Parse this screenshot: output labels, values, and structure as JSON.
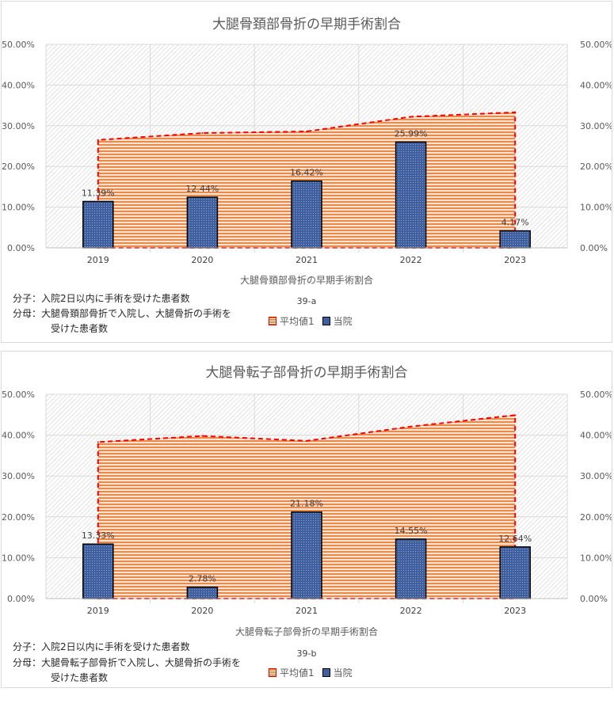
{
  "chart_data": [
    {
      "type": "bar",
      "title": "大腿骨頚部骨折の早期手術割合",
      "xlabel": "大腿骨頚部骨折の早期手術割合",
      "code": "39-a",
      "categories": [
        "2019",
        "2020",
        "2021",
        "2022",
        "2023"
      ],
      "y_ticks": [
        "0.00%",
        "10.00%",
        "20.00%",
        "30.00%",
        "40.00%",
        "50.00%"
      ],
      "ylim": [
        0,
        50
      ],
      "series": [
        {
          "name": "平均値1",
          "kind": "area",
          "values": [
            26.5,
            28.2,
            28.6,
            32.2,
            33.3
          ],
          "color": "#e36c0a",
          "border": "#ff0000"
        },
        {
          "name": "当院",
          "kind": "bar",
          "values": [
            11.39,
            12.44,
            16.42,
            25.99,
            4.17
          ],
          "labels": [
            "11.39%",
            "12.44%",
            "16.42%",
            "25.99%",
            "4.17%"
          ],
          "color": "#3f5f9f"
        }
      ],
      "notes": [
        "分子：入院2日以内に手術を受けた患者数",
        "分母：大腿骨頚部骨折で入院し、大腿骨折の手術を",
        "受けた患者数"
      ],
      "legend": [
        "平均値1",
        "当院"
      ]
    },
    {
      "type": "bar",
      "title": "大腿骨転子部骨折の早期手術割合",
      "xlabel": "大腿骨転子部骨折の早期手術割合",
      "code": "39-b",
      "categories": [
        "2019",
        "2020",
        "2021",
        "2022",
        "2023"
      ],
      "y_ticks": [
        "0.00%",
        "10.00%",
        "20.00%",
        "30.00%",
        "40.00%",
        "50.00%"
      ],
      "ylim": [
        0,
        50
      ],
      "series": [
        {
          "name": "平均値1",
          "kind": "area",
          "values": [
            38.3,
            39.8,
            38.6,
            42.1,
            44.9
          ],
          "color": "#e36c0a",
          "border": "#ff0000"
        },
        {
          "name": "当院",
          "kind": "bar",
          "values": [
            13.33,
            2.78,
            21.18,
            14.55,
            12.64
          ],
          "labels": [
            "13.33%",
            "2.78%",
            "21.18%",
            "14.55%",
            "12.64%"
          ],
          "color": "#3f5f9f"
        }
      ],
      "notes": [
        "分子：入院2日以内に手術を受けた患者数",
        "分母：大腿骨転子部骨折で入院し、大腿骨折の手術を",
        "受けた患者数"
      ],
      "legend": [
        "平均値1",
        "当院"
      ]
    }
  ]
}
